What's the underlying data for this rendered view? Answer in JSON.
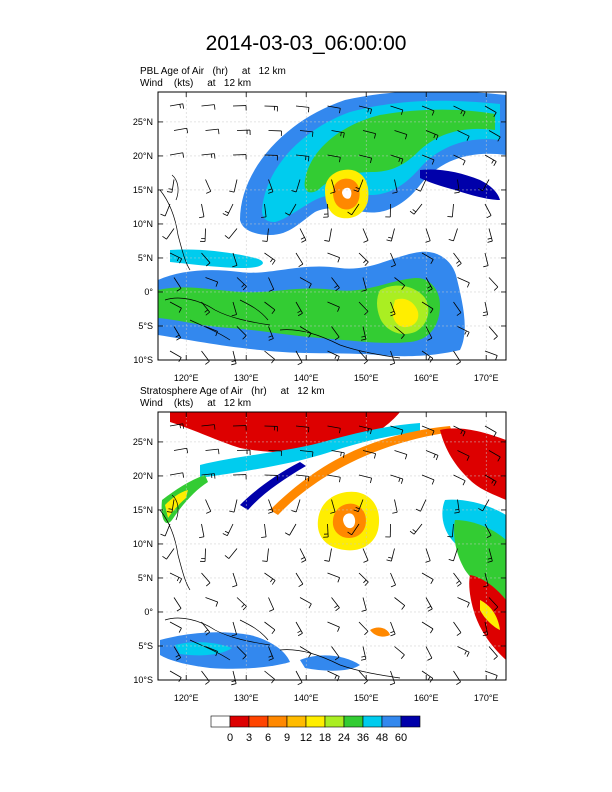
{
  "title": "2014-03-03_06:00:00",
  "panels": [
    {
      "name": "pbl",
      "line1": "PBL Age of Air   (hr)     at   12 km",
      "line2": "Wind    (kts)     at   12 km"
    },
    {
      "name": "strat",
      "line1": "Stratosphere Age of Air   (hr)     at   12 km",
      "line2": "Wind    (kts)     at   12 km"
    }
  ],
  "lon_ticks": [
    {
      "value": 120,
      "label": "120°E"
    },
    {
      "value": 130,
      "label": "130°E"
    },
    {
      "value": 140,
      "label": "140°E"
    },
    {
      "value": 150,
      "label": "150°E"
    },
    {
      "value": 160,
      "label": "160°E"
    },
    {
      "value": 170,
      "label": "170°E"
    }
  ],
  "lat_ticks": [
    {
      "value": 25,
      "label": "25°N"
    },
    {
      "value": 20,
      "label": "20°N"
    },
    {
      "value": 15,
      "label": "15°N"
    },
    {
      "value": 10,
      "label": "10°N"
    },
    {
      "value": 5,
      "label": "5°N"
    },
    {
      "value": 0,
      "label": "0°"
    },
    {
      "value": -5,
      "label": "5°S"
    },
    {
      "value": -10,
      "label": "10°S"
    }
  ],
  "colorbar": {
    "labels": [
      "0",
      "3",
      "6",
      "9",
      "12",
      "18",
      "24",
      "36",
      "48",
      "60"
    ],
    "colors": [
      "#ffffff",
      "#dd0000",
      "#ff4400",
      "#ff8800",
      "#ffbb00",
      "#ffee00",
      "#aaee22",
      "#33cc33",
      "#00ccee",
      "#3388ee",
      "#0000aa"
    ]
  },
  "colors": {
    "red": "#dd0000",
    "orange": "#ff8800",
    "yellow": "#ffee00",
    "lime": "#aaee22",
    "green": "#33cc33",
    "cyan": "#00ccee",
    "blue": "#3388ee",
    "navy": "#0000aa"
  }
}
